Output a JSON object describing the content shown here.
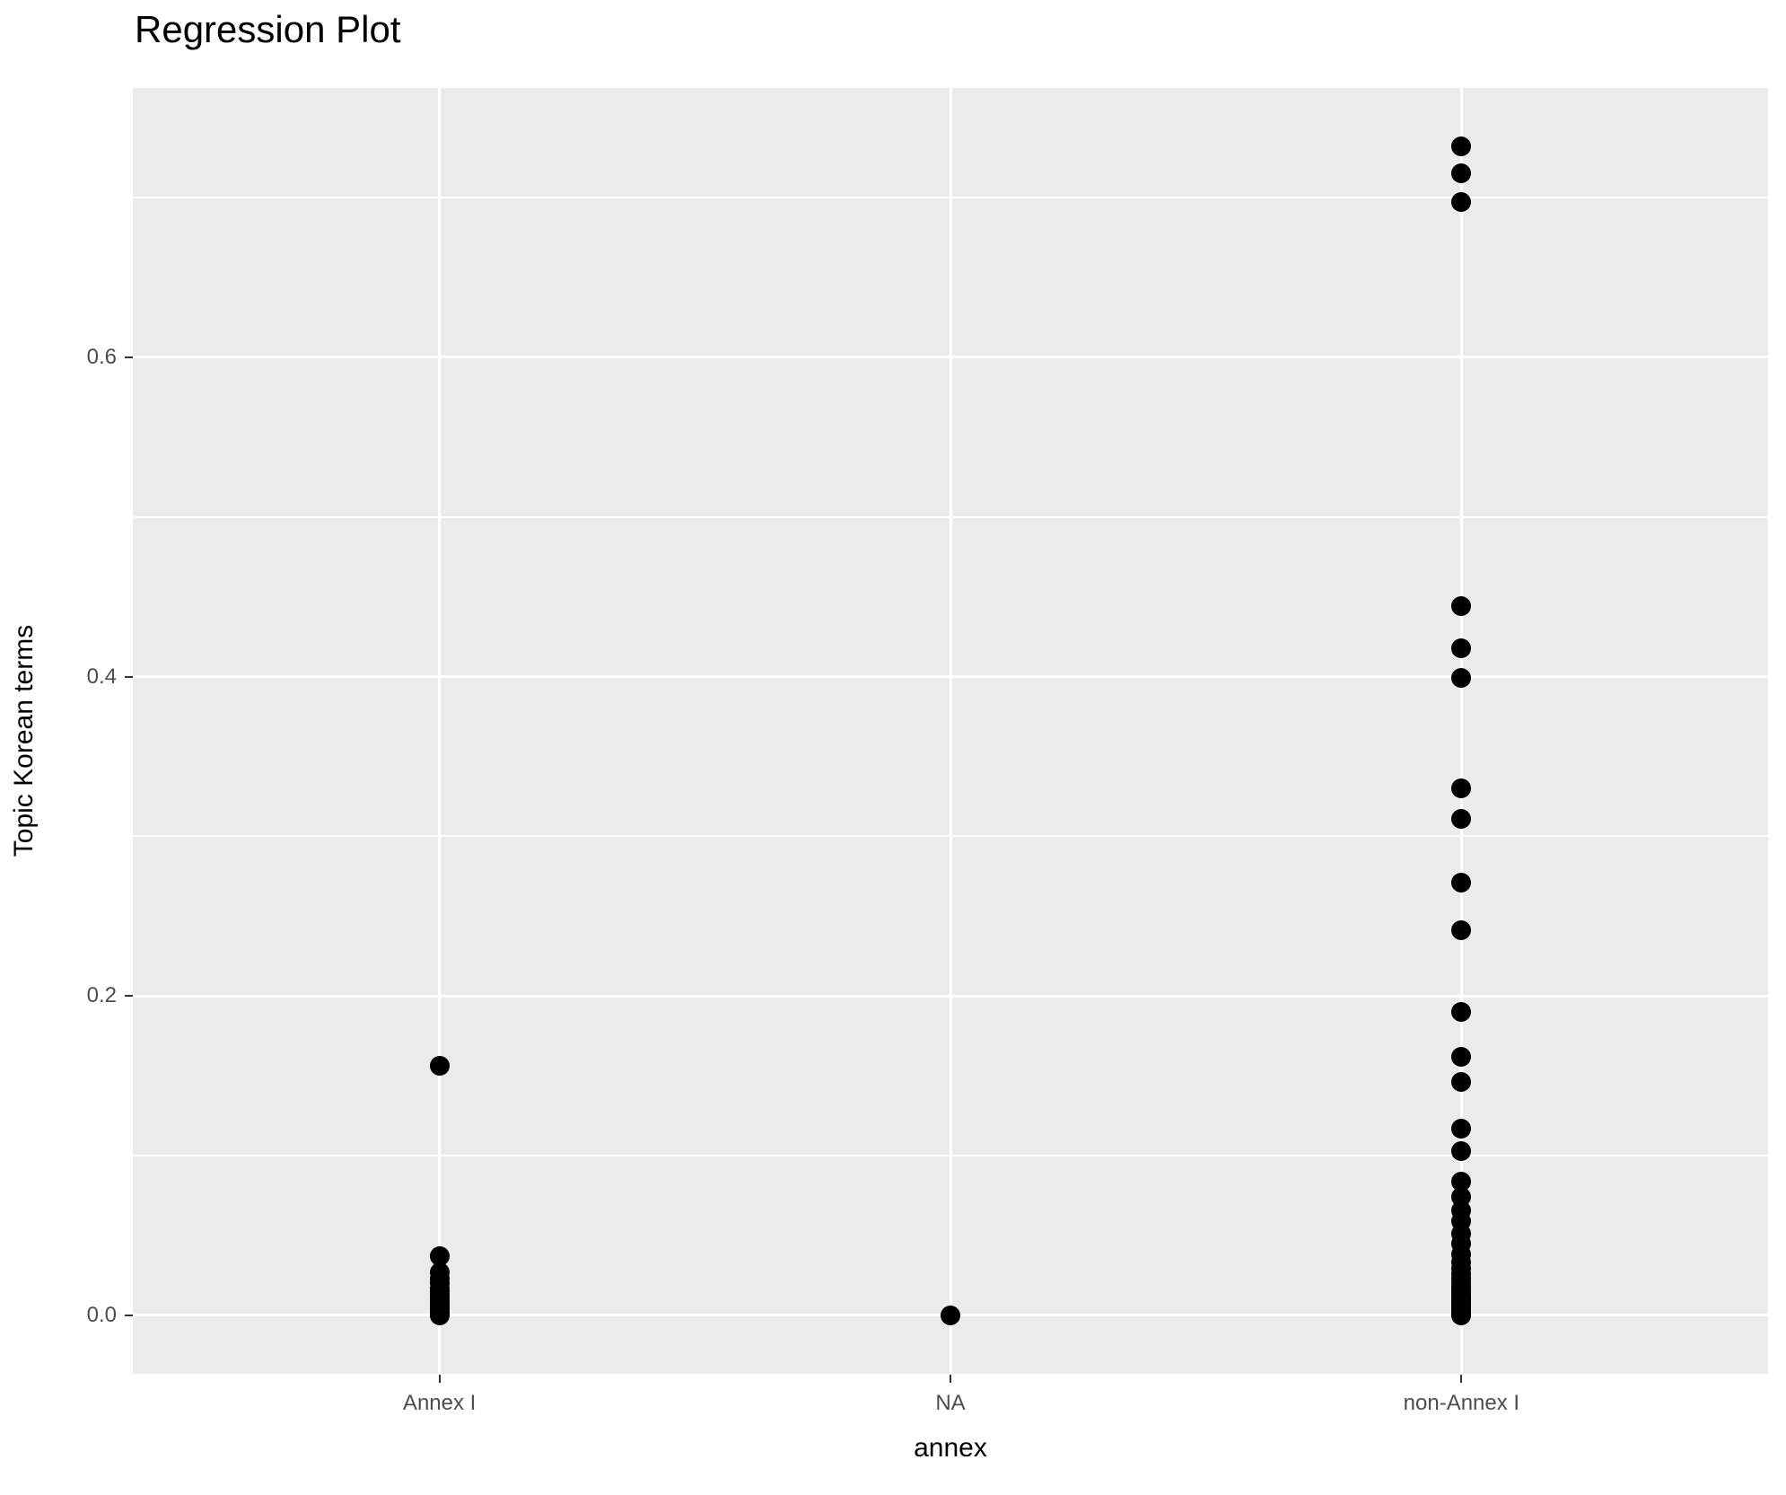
{
  "title": "Regression Plot",
  "axes": {
    "x": {
      "label": "annex",
      "categories": [
        "Annex I",
        "NA",
        "non-Annex I"
      ]
    },
    "y": {
      "label": "Topic Korean terms",
      "tick_labels": [
        "0.0",
        "0.2",
        "0.4",
        "0.6"
      ],
      "tick_values": [
        0,
        0.2,
        0.4,
        0.6
      ],
      "minor_tick_values": [
        0.1,
        0.3,
        0.5,
        0.7
      ],
      "range": [
        -0.0366,
        0.7686
      ]
    }
  },
  "colors": {
    "panel_background": "#EBEBEB",
    "gridline": "#FFFFFF",
    "point": "#000000",
    "tick_label": "#4D4D4D",
    "axis_title": "#000000",
    "tick_mark": "#333333",
    "plot_title": "#000000"
  },
  "chart_data": {
    "type": "scatter",
    "title": "Regression Plot",
    "xlabel": "annex",
    "ylabel": "Topic Korean terms",
    "categories": [
      "Annex I",
      "NA",
      "non-Annex I"
    ],
    "ylim": [
      -0.0366,
      0.7686
    ],
    "grid": "on",
    "legend": "none",
    "series": [
      {
        "name": "Annex I",
        "values": [
          0.156,
          0.037,
          0.027,
          0.023,
          0.02,
          0.017,
          0.015,
          0.013,
          0.011,
          0.009,
          0.008,
          0.007,
          0.006,
          0.005,
          0.004,
          0.003,
          0.002,
          0.001,
          0.0005,
          0
        ]
      },
      {
        "name": "NA",
        "values": [
          0
        ]
      },
      {
        "name": "non-Annex I",
        "values": [
          0.732,
          0.715,
          0.697,
          0.444,
          0.418,
          0.399,
          0.33,
          0.311,
          0.271,
          0.241,
          0.19,
          0.162,
          0.146,
          0.117,
          0.103,
          0.084,
          0.074,
          0.066,
          0.059,
          0.051,
          0.045,
          0.038,
          0.033,
          0.029,
          0.026,
          0.023,
          0.02,
          0.018,
          0.016,
          0.014,
          0.012,
          0.01,
          0.009,
          0.008,
          0.007,
          0.006,
          0.005,
          0.004,
          0.003,
          0.002,
          0.001,
          0.0005,
          0
        ]
      }
    ]
  }
}
